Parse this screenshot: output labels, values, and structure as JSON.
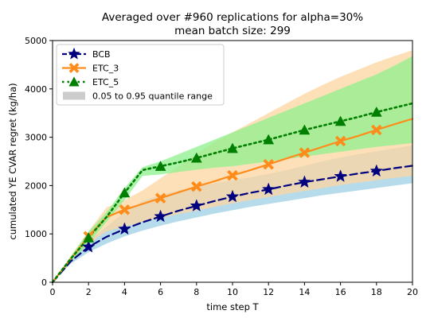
{
  "chart_data": {
    "type": "line",
    "title_line1": "Averaged over #960 replications for alpha=30%",
    "title_line2": "mean batch size: 299",
    "xlabel": "time step T",
    "ylabel": "cumulated YE CVAR regret (kg/ha)",
    "xlim": [
      0,
      20
    ],
    "ylim": [
      0,
      5000
    ],
    "xticks": [
      0,
      2,
      4,
      6,
      8,
      10,
      12,
      14,
      16,
      18,
      20
    ],
    "yticks": [
      0,
      1000,
      2000,
      3000,
      4000,
      5000
    ],
    "grid": false,
    "legend_position": "top-left",
    "band_legend_label": "0.05 to 0.95 quantile range",
    "x": [
      0,
      1,
      2,
      3,
      4,
      5,
      6,
      7,
      8,
      9,
      10,
      11,
      12,
      13,
      14,
      15,
      16,
      17,
      18,
      19,
      20
    ],
    "series": [
      {
        "name": "BCB",
        "color": "#00007f",
        "band_color": "#9ecfe3",
        "linestyle": "dashed",
        "marker": "star",
        "marker_x": [
          2,
          4,
          6,
          8,
          10,
          12,
          14,
          16,
          18
        ],
        "values": [
          0,
          430,
          730,
          940,
          1100,
          1240,
          1360,
          1480,
          1580,
          1680,
          1770,
          1850,
          1920,
          2000,
          2070,
          2130,
          2190,
          2250,
          2300,
          2360,
          2410
        ],
        "band_low": [
          0,
          380,
          620,
          800,
          950,
          1070,
          1170,
          1260,
          1340,
          1420,
          1490,
          1560,
          1620,
          1680,
          1740,
          1800,
          1850,
          1900,
          1950,
          2000,
          2050
        ],
        "band_high": [
          0,
          480,
          850,
          1150,
          1450,
          1680,
          1800,
          1900,
          1980,
          2050,
          2110,
          2170,
          2240,
          2320,
          2410,
          2500,
          2580,
          2650,
          2710,
          2770,
          2830
        ]
      },
      {
        "name": "ETC_3",
        "color": "#ff8c1a",
        "band_color": "#fcd5a0",
        "linestyle": "solid",
        "marker": "x-filled",
        "marker_x": [
          2,
          4,
          6,
          8,
          10,
          12,
          14,
          16,
          18
        ],
        "values": [
          0,
          480,
          950,
          1350,
          1500,
          1620,
          1740,
          1860,
          1980,
          2090,
          2210,
          2320,
          2440,
          2560,
          2680,
          2800,
          2920,
          3030,
          3150,
          3270,
          3380
        ],
        "band_low": [
          0,
          430,
          800,
          1050,
          1150,
          1250,
          1330,
          1410,
          1480,
          1560,
          1630,
          1700,
          1760,
          1830,
          1890,
          1950,
          2010,
          2060,
          2110,
          2160,
          2200
        ],
        "band_high": [
          0,
          530,
          1050,
          1550,
          1700,
          1900,
          2150,
          2400,
          2650,
          2900,
          3100,
          3300,
          3500,
          3700,
          3900,
          4080,
          4250,
          4400,
          4550,
          4680,
          4800
        ]
      },
      {
        "name": "ETC_5",
        "color": "#007f00",
        "band_color": "#8ef08e",
        "linestyle": "dotted",
        "marker": "triangle-up",
        "marker_x": [
          2,
          4,
          6,
          8,
          10,
          12,
          14,
          16,
          18
        ],
        "values": [
          0,
          480,
          920,
          1350,
          1850,
          2320,
          2400,
          2480,
          2570,
          2670,
          2770,
          2860,
          2950,
          3050,
          3150,
          3240,
          3330,
          3420,
          3520,
          3610,
          3700
        ],
        "band_low": [
          0,
          430,
          800,
          1250,
          1700,
          2200,
          2230,
          2280,
          2330,
          2370,
          2400,
          2450,
          2500,
          2550,
          2600,
          2650,
          2700,
          2750,
          2800,
          2840,
          2880
        ],
        "band_high": [
          0,
          530,
          1050,
          1450,
          1950,
          2380,
          2500,
          2650,
          2800,
          2950,
          3100,
          3250,
          3400,
          3550,
          3700,
          3850,
          4000,
          4150,
          4300,
          4480,
          4680
        ]
      }
    ]
  }
}
